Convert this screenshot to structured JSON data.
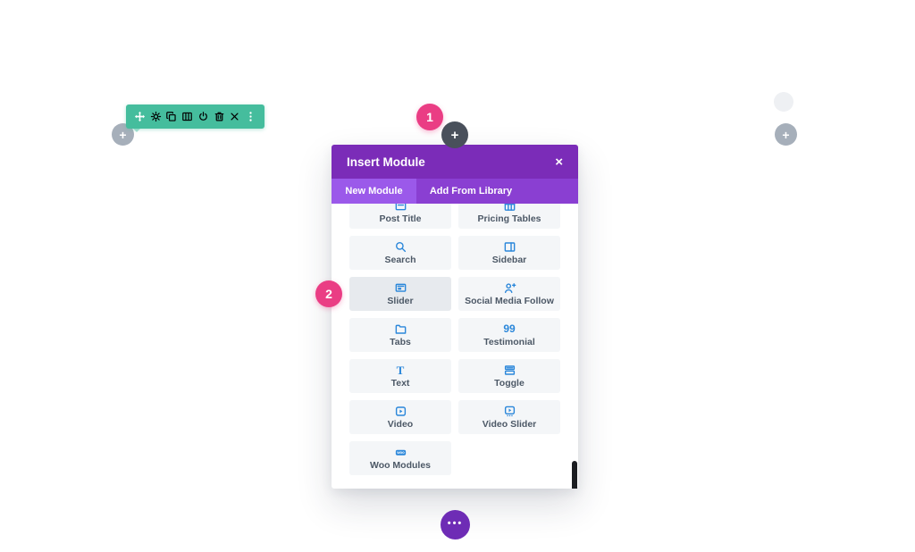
{
  "colors": {
    "toolbar_green": "#45bd9d",
    "modal_header_purple": "#7b2cb8",
    "tabbar_purple": "#8a3fd2",
    "active_tab_purple": "#9b59ea",
    "annotation_pink": "#ea3d84",
    "module_icon_blue": "#2b87da",
    "module_label_gray": "#4c5866"
  },
  "row_toolbar": {
    "icons": [
      {
        "name": "move-icon"
      },
      {
        "name": "gear-icon"
      },
      {
        "name": "duplicate-icon"
      },
      {
        "name": "columns-icon"
      },
      {
        "name": "disable-icon"
      },
      {
        "name": "trash-icon"
      },
      {
        "name": "close-icon"
      },
      {
        "name": "more-vertical-icon"
      }
    ]
  },
  "floating_buttons": {
    "left_add_label": "+",
    "right_add_label": "+",
    "insert_module_add_label": "+",
    "bottom_menu_dots": "•••"
  },
  "annotations": {
    "step1": "1",
    "step2": "2"
  },
  "modal": {
    "title": "Insert Module",
    "close_label": "×",
    "tabs": [
      {
        "label": "New Module",
        "active": true
      },
      {
        "label": "Add From Library",
        "active": false
      }
    ],
    "modules": [
      {
        "label": "Post Title",
        "icon": "post-title-icon",
        "highlighted": false
      },
      {
        "label": "Pricing Tables",
        "icon": "pricing-tables-icon",
        "highlighted": false
      },
      {
        "label": "Search",
        "icon": "search-icon",
        "highlighted": false
      },
      {
        "label": "Sidebar",
        "icon": "sidebar-icon",
        "highlighted": false
      },
      {
        "label": "Slider",
        "icon": "slider-icon",
        "highlighted": true
      },
      {
        "label": "Social Media Follow",
        "icon": "social-media-follow-icon",
        "highlighted": false
      },
      {
        "label": "Tabs",
        "icon": "tabs-icon",
        "highlighted": false
      },
      {
        "label": "Testimonial",
        "icon": "testimonial-icon",
        "highlighted": false
      },
      {
        "label": "Text",
        "icon": "text-icon",
        "highlighted": false
      },
      {
        "label": "Toggle",
        "icon": "toggle-icon",
        "highlighted": false
      },
      {
        "label": "Video",
        "icon": "video-icon",
        "highlighted": false
      },
      {
        "label": "Video Slider",
        "icon": "video-slider-icon",
        "highlighted": false
      },
      {
        "label": "Woo Modules",
        "icon": "woo-modules-icon",
        "highlighted": false
      }
    ]
  }
}
